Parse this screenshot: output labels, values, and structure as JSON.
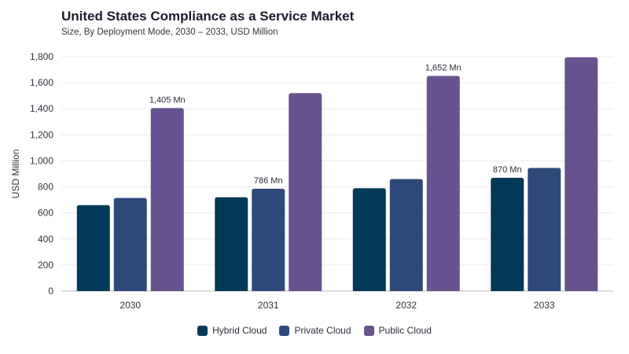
{
  "header": {
    "title": "United States Compliance as a Service Market",
    "subtitle": "Size, By Deployment Mode, 2030 – 2033, USD Million"
  },
  "colors": {
    "Hybrid Cloud": "#013a58",
    "Private Cloud": "#2e4a7a",
    "Public Cloud": "#67538f"
  },
  "chart_data": {
    "type": "bar",
    "title": "United States Compliance as a Service Market",
    "subtitle": "Size, By Deployment Mode, 2030 – 2033, USD Million",
    "xlabel": "",
    "ylabel": "USD Million",
    "ylim": [
      0,
      1800
    ],
    "yticks": [
      0,
      200,
      400,
      600,
      800,
      1000,
      1200,
      1400,
      1600,
      1800
    ],
    "ytick_labels": [
      "0",
      "200",
      "400",
      "600",
      "800",
      "1,000",
      "1,200",
      "1,400",
      "1,600",
      "1,800"
    ],
    "categories": [
      "2030",
      "2031",
      "2032",
      "2033"
    ],
    "series": [
      {
        "name": "Hybrid Cloud",
        "values": [
          660,
          720,
          790,
          870
        ]
      },
      {
        "name": "Private Cloud",
        "values": [
          715,
          786,
          860,
          945
        ]
      },
      {
        "name": "Public Cloud",
        "values": [
          1405,
          1520,
          1652,
          1795
        ]
      }
    ],
    "annotations": [
      {
        "category": "2030",
        "series": "Public Cloud",
        "text": "1,405 Mn"
      },
      {
        "category": "2031",
        "series": "Private Cloud",
        "text": "786 Mn"
      },
      {
        "category": "2032",
        "series": "Public Cloud",
        "text": "1,652 Mn"
      },
      {
        "category": "2033",
        "series": "Hybrid Cloud",
        "text": "870 Mn"
      }
    ],
    "grid": true,
    "legend": "bottom"
  }
}
